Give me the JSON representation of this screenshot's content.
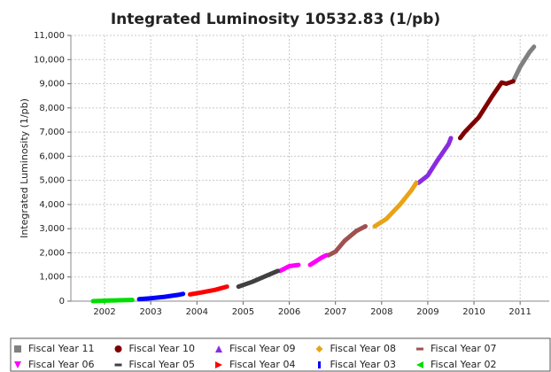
{
  "chart_data": {
    "type": "line",
    "title": "Integrated Luminosity 10532.83 (1/pb)",
    "y_label": "Integrated Luminosity (1/pb)",
    "xlim": [
      2001.27,
      2011.63
    ],
    "xticks": [
      2002,
      2003,
      2004,
      2005,
      2006,
      2007,
      2008,
      2009,
      2010,
      2011
    ],
    "ylim": [
      0,
      11000
    ],
    "yticks": [
      0,
      {
        "value": 1000,
        "label": "1,000"
      },
      {
        "value": 2000,
        "label": "2,000"
      },
      {
        "value": 3000,
        "label": "3,000"
      },
      {
        "value": 4000,
        "label": "4,000"
      },
      {
        "value": 5000,
        "label": "5,000"
      },
      {
        "value": 6000,
        "label": "6,000"
      },
      {
        "value": 7000,
        "label": "7,000"
      },
      {
        "value": 8000,
        "label": "8,000"
      },
      {
        "value": 9000,
        "label": "9,000"
      },
      {
        "value": 10000,
        "label": "10,000"
      },
      {
        "value": 11000,
        "label": "11,000"
      }
    ],
    "grid": true,
    "legend": "bottom",
    "series": [
      {
        "name": "Fiscal Year 11",
        "color": "#808080",
        "marker": "square",
        "x": [
          2010.85,
          2011.0,
          2011.2,
          2011.3
        ],
        "values": [
          9100,
          9700,
          10300,
          10530
        ]
      },
      {
        "name": "Fiscal Year 10",
        "color": "#800000",
        "marker": "circle",
        "x": [
          2009.7,
          2009.8,
          2010.1,
          2010.4,
          2010.6,
          2010.7,
          2010.85
        ],
        "values": [
          6750,
          7000,
          7600,
          8500,
          9050,
          9000,
          9100
        ]
      },
      {
        "name": "Fiscal Year 09",
        "color": "#8a2be2",
        "marker": "triangle-up",
        "x": [
          2008.8,
          2009.0,
          2009.2,
          2009.45,
          2009.5
        ],
        "values": [
          4900,
          5200,
          5800,
          6500,
          6750
        ]
      },
      {
        "name": "Fiscal Year 08",
        "color": "#e8a317",
        "marker": "diamond",
        "x": [
          2007.85,
          2008.1,
          2008.4,
          2008.65,
          2008.75
        ],
        "values": [
          3100,
          3400,
          4000,
          4600,
          4900
        ]
      },
      {
        "name": "Fiscal Year 07",
        "color": "#a05050",
        "marker": "hbar",
        "x": [
          2006.85,
          2007.0,
          2007.2,
          2007.45,
          2007.65
        ],
        "values": [
          1900,
          2050,
          2500,
          2900,
          3100
        ]
      },
      {
        "name": "Fiscal Year 06",
        "color": "#ff00ff",
        "marker": "triangle-down",
        "x": [
          2005.8,
          2006.0,
          2006.2,
          null,
          2006.45,
          2006.7,
          2006.8
        ],
        "values": [
          1250,
          1450,
          1500,
          null,
          1500,
          1800,
          1900
        ]
      },
      {
        "name": "Fiscal Year 05",
        "color": "#404040",
        "marker": "hbar",
        "x": [
          2004.9,
          2005.2,
          2005.5,
          2005.75
        ],
        "values": [
          600,
          800,
          1050,
          1250
        ]
      },
      {
        "name": "Fiscal Year 04",
        "color": "#ff0000",
        "marker": "triangle-right",
        "x": [
          2003.85,
          2004.1,
          2004.4,
          2004.65
        ],
        "values": [
          280,
          360,
          470,
          600
        ]
      },
      {
        "name": "Fiscal Year 03",
        "color": "#0000ff",
        "marker": "vbar",
        "x": [
          2002.75,
          2003.0,
          2003.3,
          2003.6,
          2003.7
        ],
        "values": [
          80,
          120,
          180,
          260,
          300
        ]
      },
      {
        "name": "Fiscal Year 02",
        "color": "#00dd00",
        "marker": "triangle-left",
        "x": [
          2001.75,
          2002.0,
          2002.3,
          2002.6
        ],
        "values": [
          0,
          20,
          35,
          50
        ]
      }
    ]
  }
}
